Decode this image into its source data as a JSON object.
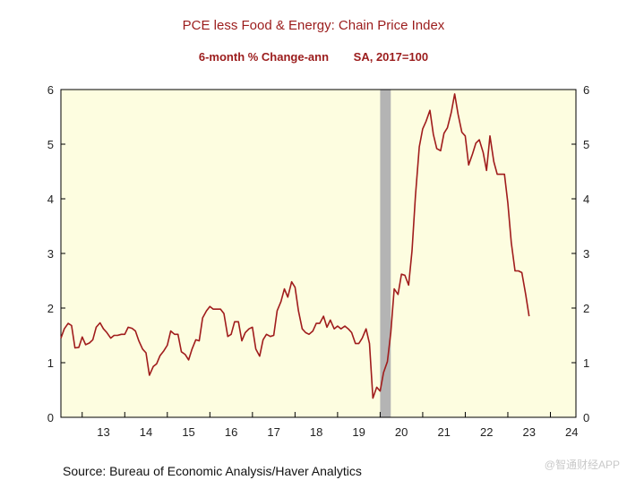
{
  "chart_data": {
    "type": "line",
    "title": "PCE less Food & Energy: Chain Price Index",
    "subtitle_left": "6-month % Change-ann",
    "subtitle_right": "SA, 2017=100",
    "x_tick_labels": [
      "13",
      "14",
      "15",
      "16",
      "17",
      "18",
      "19",
      "20",
      "21",
      "22",
      "23",
      "24"
    ],
    "y_tick_labels": [
      "0",
      "1",
      "2",
      "3",
      "4",
      "5",
      "6"
    ],
    "ylim": [
      0,
      6
    ],
    "xlim": [
      2012.5,
      2024.6
    ],
    "recession": {
      "start": 2020.0,
      "end": 2020.25,
      "color": "#b4b4b4"
    },
    "plot_background": "#fdfde0",
    "line_color": "#a01c1c",
    "series": [
      {
        "name": "PCE less Food & Energy, 6-month % change annualized",
        "x": [
          2012.5,
          2012.58,
          2012.67,
          2012.75,
          2012.83,
          2012.92,
          2013.0,
          2013.08,
          2013.17,
          2013.25,
          2013.33,
          2013.42,
          2013.5,
          2013.58,
          2013.67,
          2013.75,
          2013.83,
          2013.92,
          2014.0,
          2014.08,
          2014.17,
          2014.25,
          2014.33,
          2014.42,
          2014.5,
          2014.58,
          2014.67,
          2014.75,
          2014.83,
          2014.92,
          2015.0,
          2015.08,
          2015.17,
          2015.25,
          2015.33,
          2015.42,
          2015.5,
          2015.58,
          2015.67,
          2015.75,
          2015.83,
          2015.92,
          2016.0,
          2016.08,
          2016.17,
          2016.25,
          2016.33,
          2016.42,
          2016.5,
          2016.58,
          2016.67,
          2016.75,
          2016.83,
          2016.92,
          2017.0,
          2017.08,
          2017.17,
          2017.25,
          2017.33,
          2017.42,
          2017.5,
          2017.58,
          2017.67,
          2017.75,
          2017.83,
          2017.92,
          2018.0,
          2018.08,
          2018.17,
          2018.25,
          2018.33,
          2018.42,
          2018.5,
          2018.58,
          2018.67,
          2018.75,
          2018.83,
          2018.92,
          2019.0,
          2019.08,
          2019.17,
          2019.25,
          2019.33,
          2019.42,
          2019.5,
          2019.58,
          2019.67,
          2019.75,
          2019.83,
          2019.92,
          2020.0,
          2020.08,
          2020.17,
          2020.25,
          2020.33,
          2020.42,
          2020.5,
          2020.58,
          2020.67,
          2020.75,
          2020.83,
          2020.92,
          2021.0,
          2021.08,
          2021.17,
          2021.25,
          2021.33,
          2021.42,
          2021.5,
          2021.58,
          2021.67,
          2021.75,
          2021.83,
          2021.92,
          2022.0,
          2022.08,
          2022.17,
          2022.25,
          2022.33,
          2022.42,
          2022.5,
          2022.58,
          2022.67,
          2022.75,
          2022.83,
          2022.92,
          2023.0,
          2023.08,
          2023.17,
          2023.25,
          2023.33,
          2023.42,
          2023.5
        ],
        "values": [
          1.45,
          1.62,
          1.72,
          1.68,
          1.27,
          1.28,
          1.47,
          1.33,
          1.36,
          1.42,
          1.65,
          1.73,
          1.62,
          1.55,
          1.45,
          1.5,
          1.5,
          1.52,
          1.52,
          1.65,
          1.63,
          1.58,
          1.4,
          1.25,
          1.18,
          0.77,
          0.93,
          0.98,
          1.13,
          1.22,
          1.32,
          1.58,
          1.52,
          1.52,
          1.2,
          1.15,
          1.05,
          1.25,
          1.42,
          1.4,
          1.82,
          1.95,
          2.03,
          1.98,
          1.98,
          1.98,
          1.9,
          1.48,
          1.52,
          1.75,
          1.75,
          1.4,
          1.55,
          1.62,
          1.65,
          1.25,
          1.12,
          1.42,
          1.52,
          1.48,
          1.5,
          1.95,
          2.12,
          2.35,
          2.2,
          2.48,
          2.38,
          1.95,
          1.62,
          1.55,
          1.52,
          1.58,
          1.72,
          1.72,
          1.85,
          1.65,
          1.78,
          1.62,
          1.67,
          1.62,
          1.67,
          1.62,
          1.55,
          1.35,
          1.35,
          1.45,
          1.62,
          1.35,
          0.35,
          0.55,
          0.48,
          0.82,
          1.02,
          1.55,
          2.35,
          2.25,
          2.62,
          2.6,
          2.42,
          3.05,
          4.05,
          4.95,
          5.28,
          5.42,
          5.62,
          5.18,
          4.92,
          4.88,
          5.2,
          5.3,
          5.58,
          5.92,
          5.55,
          5.22,
          5.15,
          4.62,
          4.82,
          5.02,
          5.08,
          4.85,
          4.52,
          5.15,
          4.68,
          4.45,
          4.45,
          4.45,
          3.92,
          3.2,
          2.68,
          2.68,
          2.65,
          2.25,
          1.85
        ]
      }
    ],
    "source": "Source:  Bureau of Economic Analysis/Haver Analytics"
  },
  "watermark": "@智通财经APP"
}
